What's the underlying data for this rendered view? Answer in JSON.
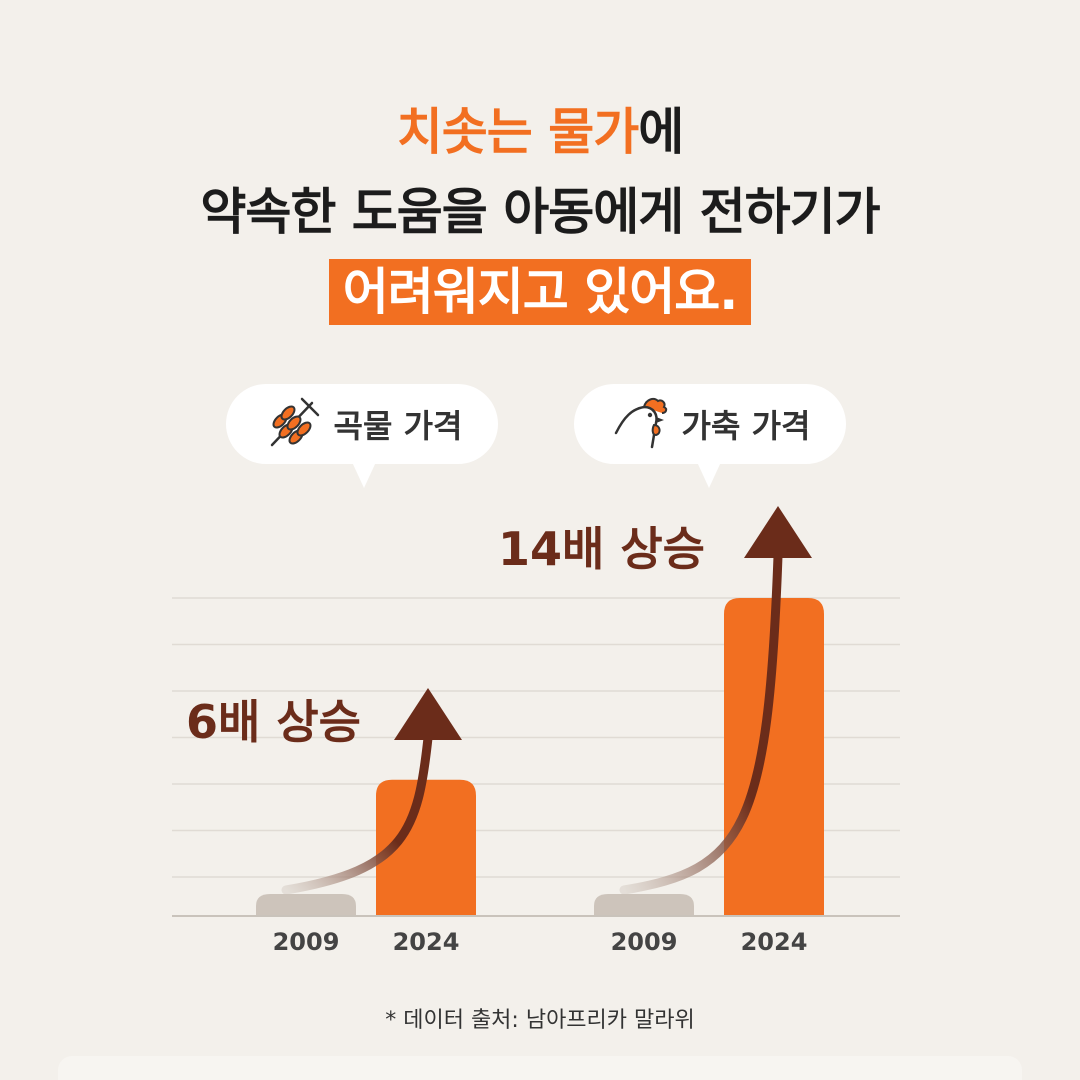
{
  "headline": {
    "line1_accent_a": "치솟는",
    "line1_accent_b": "물가",
    "line1_rest": "에",
    "line2": "약속한 도움을 아동에게 전하기가",
    "line3": "어려워지고 있어요."
  },
  "colors": {
    "accent": "#f26f21",
    "arrow": "#6b2c1a",
    "bar_old": "#cdc4bb",
    "background": "#f3f0eb"
  },
  "chart_data": [
    {
      "type": "bar",
      "title": "곡물 가격",
      "icon": "wheat-icon",
      "categories": [
        "2009",
        "2024"
      ],
      "values": [
        1,
        6
      ],
      "annotation": "6배 상승",
      "ylim": [
        0,
        14.5
      ]
    },
    {
      "type": "bar",
      "title": "가축 가격",
      "icon": "chicken-icon",
      "categories": [
        "2009",
        "2024"
      ],
      "values": [
        1,
        14
      ],
      "annotation": "14배 상승",
      "ylim": [
        0,
        14.5
      ]
    }
  ],
  "source": "* 데이터 출처: 남아프리카 말라위"
}
